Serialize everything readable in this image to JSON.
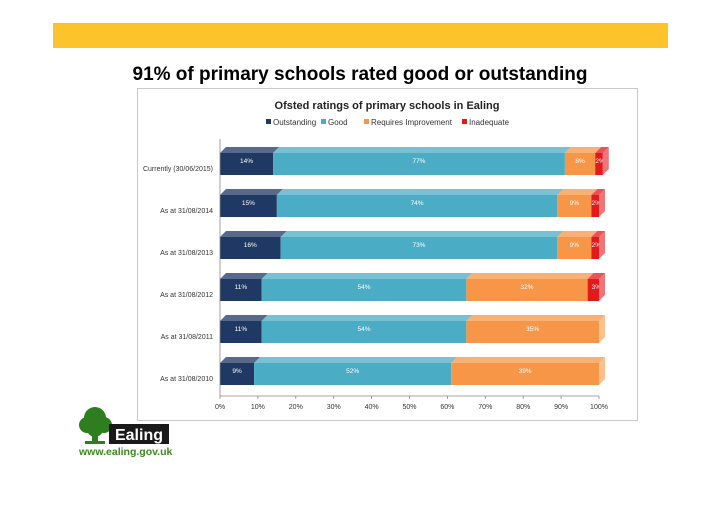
{
  "slide": {
    "title": "91% of primary schools rated good or outstanding",
    "banner_color": "#fcc42a"
  },
  "logo": {
    "name": "Ealing",
    "url_text": "www.ealing.gov.uk"
  },
  "chart_data": {
    "type": "bar",
    "orientation": "horizontal",
    "stacked": true,
    "title": "Ofsted ratings of primary schools in Ealing",
    "legend_position": "top",
    "categories": [
      "Currently (30/06/2015)",
      "As at 31/08/2014",
      "As at 31/08/2013",
      "As at 31/08/2012",
      "As at 31/08/2011",
      "As at 31/08/2010"
    ],
    "series": [
      {
        "name": "Outstanding",
        "color": "#1f3864",
        "values": [
          14,
          15,
          16,
          11,
          11,
          9
        ],
        "labels": [
          "14%",
          "15%",
          "16%",
          "11%",
          "11%",
          "9%"
        ]
      },
      {
        "name": "Good",
        "color": "#4bacc6",
        "values": [
          77,
          74,
          73,
          54,
          54,
          52
        ],
        "labels": [
          "77%",
          "74%",
          "73%",
          "54%",
          "54%",
          "52%"
        ]
      },
      {
        "name": "Requires Improvement",
        "color": "#f79646",
        "values": [
          8,
          9,
          9,
          32,
          35,
          39
        ],
        "labels": [
          "8%",
          "9%",
          "9%",
          "32%",
          "35%",
          "39%"
        ]
      },
      {
        "name": "Inadequate",
        "color": "#e31a1c",
        "values": [
          2,
          2,
          2,
          3,
          0,
          0
        ],
        "labels": [
          "2%",
          "2%",
          "2%",
          "3%",
          "",
          ""
        ]
      }
    ],
    "xlim": [
      0,
      100
    ],
    "xticks": [
      "0%",
      "10%",
      "20%",
      "30%",
      "40%",
      "50%",
      "60%",
      "70%",
      "80%",
      "90%",
      "100%"
    ],
    "grid": false
  }
}
